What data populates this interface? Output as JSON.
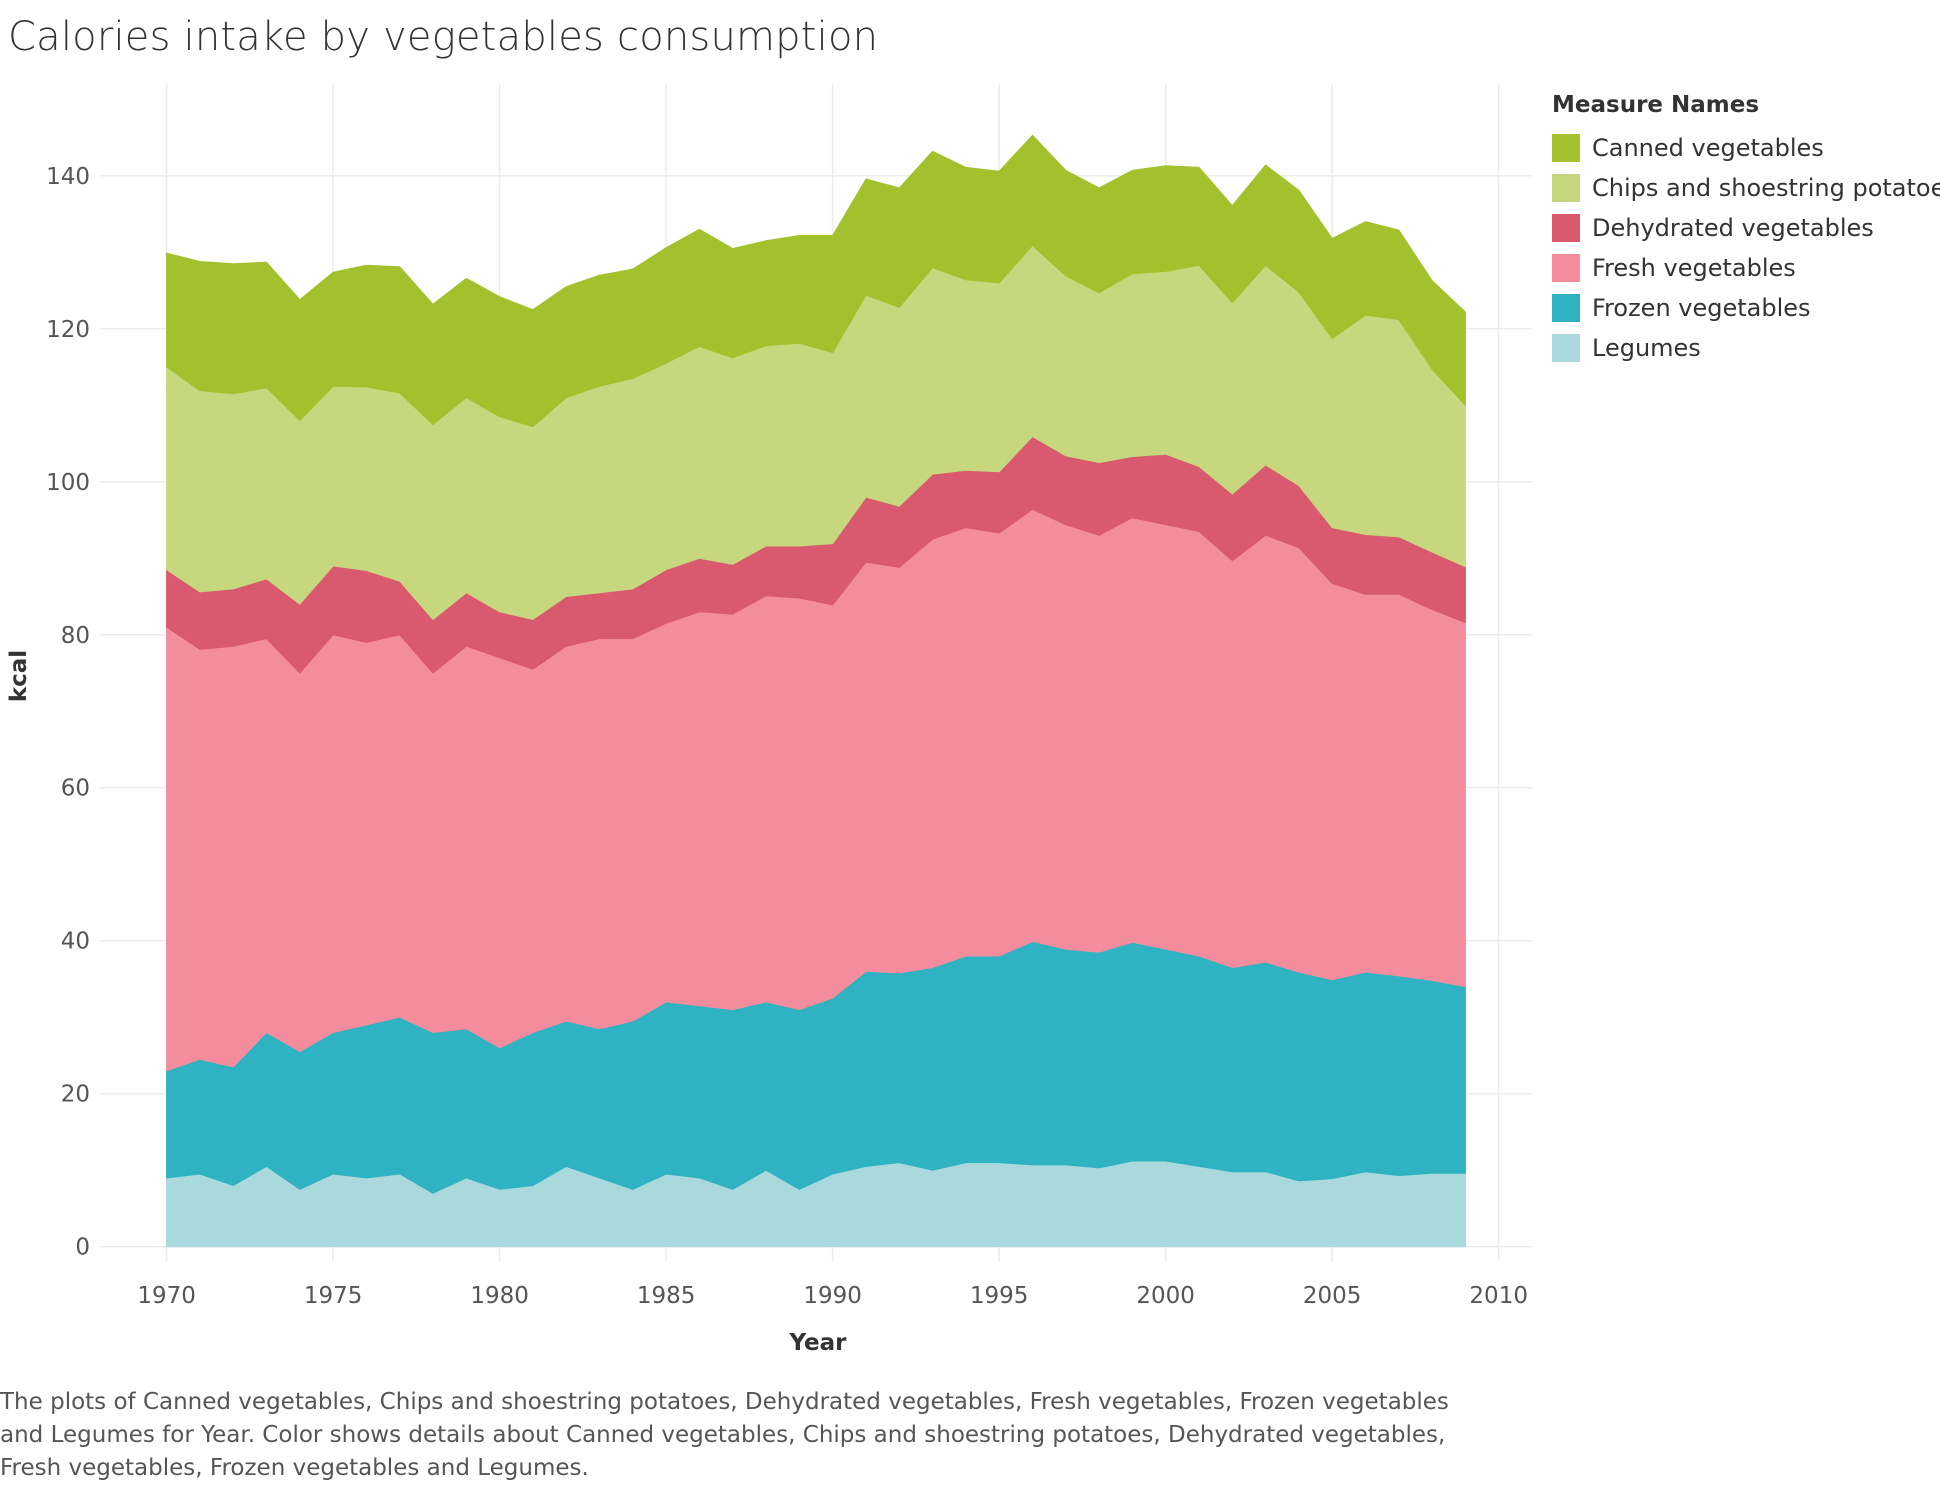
{
  "title": "Calories intake by vegetables consumption",
  "legend": {
    "title": "Measure Names",
    "items": [
      {
        "label": "Canned vegetables",
        "color": "#a3c12d"
      },
      {
        "label": "Chips and shoestring potatoes",
        "color": "#c6d77e"
      },
      {
        "label": "Dehydrated vegetables",
        "color": "#d9596e"
      },
      {
        "label": "Fresh vegetables",
        "color": "#f38d9d"
      },
      {
        "label": "Frozen vegetables",
        "color": "#2fb2c2"
      },
      {
        "label": "Legumes",
        "color": "#a9d9dc"
      }
    ]
  },
  "caption": "The plots of Canned vegetables, Chips and shoestring potatoes, Dehydrated vegetables, Fresh vegetables, Frozen vegetables and Legumes for Year.  Color shows details about Canned vegetables, Chips and shoestring potatoes, Dehydrated vegetables, Fresh vegetables, Frozen vegetables and Legumes.",
  "chart_data": {
    "type": "area",
    "stacked": true,
    "xlabel": "Year",
    "ylabel": "kcal",
    "xlim": [
      1968,
      2011
    ],
    "ylim": [
      -2,
      152
    ],
    "x_ticks": [
      1970,
      1975,
      1980,
      1985,
      1990,
      1995,
      2000,
      2005,
      2010
    ],
    "y_ticks": [
      0,
      20,
      40,
      60,
      80,
      100,
      120,
      140
    ],
    "grid": true,
    "legend_position": "right",
    "x": [
      1970,
      1971,
      1972,
      1973,
      1974,
      1975,
      1976,
      1977,
      1978,
      1979,
      1980,
      1981,
      1982,
      1983,
      1984,
      1985,
      1986,
      1987,
      1988,
      1989,
      1990,
      1991,
      1992,
      1993,
      1994,
      1995,
      1996,
      1997,
      1998,
      1999,
      2000,
      2001,
      2002,
      2003,
      2004,
      2005,
      2006,
      2007,
      2008,
      2009
    ],
    "series": [
      {
        "name": "Legumes",
        "color": "#a9d9dc",
        "values": [
          9,
          9.5,
          8,
          10.5,
          7.5,
          9.5,
          9,
          9.5,
          7,
          9,
          7.5,
          8,
          10.5,
          9,
          7.5,
          9.5,
          9,
          7.5,
          10,
          7.5,
          9.5,
          10.5,
          11,
          10,
          11,
          11,
          10.7,
          10.7,
          10.3,
          11.2,
          11.2,
          10.5,
          9.8,
          9.8,
          8.6,
          8.9,
          9.8,
          9.3,
          9.6,
          9.6
        ]
      },
      {
        "name": "Frozen vegetables",
        "color": "#2fb2c2",
        "values": [
          14,
          15,
          15.5,
          17.5,
          18,
          18.5,
          20,
          20.5,
          21,
          19.5,
          18.5,
          20,
          19,
          19.5,
          22,
          22.5,
          22.5,
          23.5,
          22,
          23.5,
          23,
          25.5,
          24.8,
          26.5,
          27,
          27,
          29.2,
          28.2,
          28.2,
          28.6,
          27.7,
          27.5,
          26.7,
          27.4,
          27.3,
          26,
          26.1,
          26.1,
          25.2,
          24.4
        ]
      },
      {
        "name": "Fresh vegetables",
        "color": "#f38d9d",
        "values": [
          58,
          53.6,
          55,
          51.5,
          49.5,
          52,
          50,
          50,
          47,
          50,
          51,
          47.5,
          49,
          51,
          50,
          49.5,
          51.5,
          51.7,
          53.1,
          53.8,
          51.4,
          53.5,
          53,
          56,
          56,
          55.3,
          56.5,
          55.5,
          54.5,
          55.5,
          55.5,
          55.5,
          53.2,
          55.8,
          55.5,
          51.8,
          49.4,
          49.9,
          48.5,
          47.6
        ]
      },
      {
        "name": "Dehydrated vegetables",
        "color": "#d9596e",
        "values": [
          7.5,
          7.5,
          7.5,
          7.8,
          9,
          9,
          9.4,
          7,
          7,
          7,
          6,
          6.5,
          6.5,
          6,
          6.5,
          7,
          7,
          6.5,
          6.5,
          6.8,
          8,
          8.5,
          8,
          8.5,
          7.5,
          8,
          9.5,
          9,
          9.5,
          8,
          9.2,
          8.5,
          8.7,
          9.2,
          8.1,
          7.3,
          7.8,
          7.5,
          7.5,
          7.3
        ]
      },
      {
        "name": "Chips and shoestring potatoes",
        "color": "#c6d77e",
        "values": [
          26.5,
          26.3,
          25.5,
          25,
          24,
          23.5,
          24,
          24.6,
          25.5,
          25.5,
          25.5,
          25.2,
          26,
          27,
          27.5,
          27,
          27.7,
          27,
          26.2,
          26.5,
          25,
          26.4,
          26,
          27,
          24.9,
          24.7,
          25,
          23.5,
          22.2,
          23.9,
          23.9,
          26.3,
          25,
          26.1,
          25.3,
          24.7,
          28.7,
          28.4,
          23.9,
          21.1
        ]
      },
      {
        "name": "Canned vegetables",
        "color": "#a3c12d",
        "values": [
          14.9,
          16.9,
          17,
          16.4,
          15.8,
          14.9,
          15.9,
          16.5,
          15.7,
          15.6,
          15.7,
          15.3,
          14.5,
          14.5,
          14.3,
          15.1,
          15.3,
          14.3,
          13.7,
          14.1,
          15.3,
          15.2,
          15.6,
          15.2,
          14.7,
          14.6,
          14.4,
          13.8,
          13.7,
          13.5,
          13.8,
          12.8,
          12.7,
          13.1,
          13.3,
          13.1,
          12.2,
          11.7,
          11.6,
          12.2
        ]
      }
    ]
  }
}
